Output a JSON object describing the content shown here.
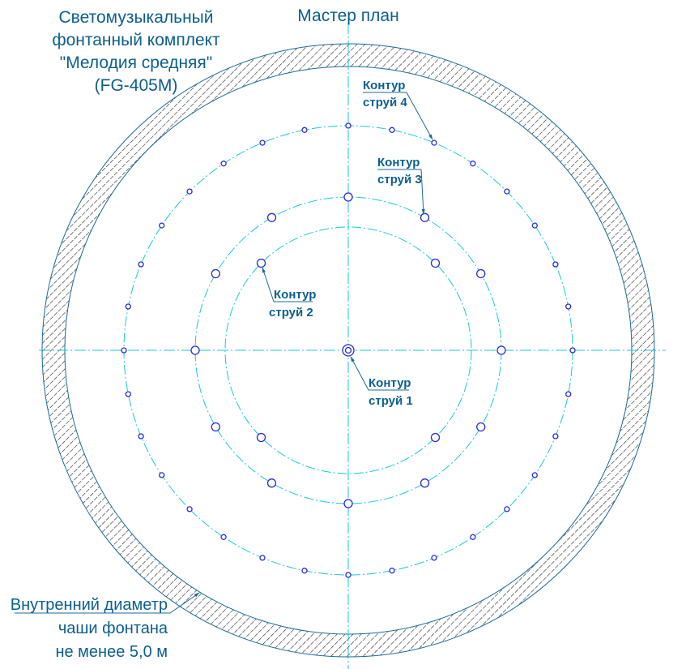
{
  "title": {
    "lines": [
      "Светомузыкальный",
      "фонтанный комплект",
      "\"Мелодия средняя\"",
      "(FG-405M)"
    ]
  },
  "plan_title": "Мастер план",
  "contours": [
    {
      "label_line1": "Контур",
      "label_line2": "струй 1",
      "nozzles": 1
    },
    {
      "label_line1": "Контур",
      "label_line2": "струй 2",
      "nozzles": 4
    },
    {
      "label_line1": "Контур",
      "label_line2": "струй 3",
      "nozzles": 12
    },
    {
      "label_line1": "Контур",
      "label_line2": "струй 4",
      "nozzles": 32
    }
  ],
  "bowl_note": {
    "line1": "Внутренний диаметр",
    "line2": "чаши фонтана",
    "line3": "не менее 5,0 м"
  },
  "colors": {
    "text": "#0b5f8c",
    "centerlines": "#19c9d8",
    "nozzles": "#2a2ad6"
  }
}
